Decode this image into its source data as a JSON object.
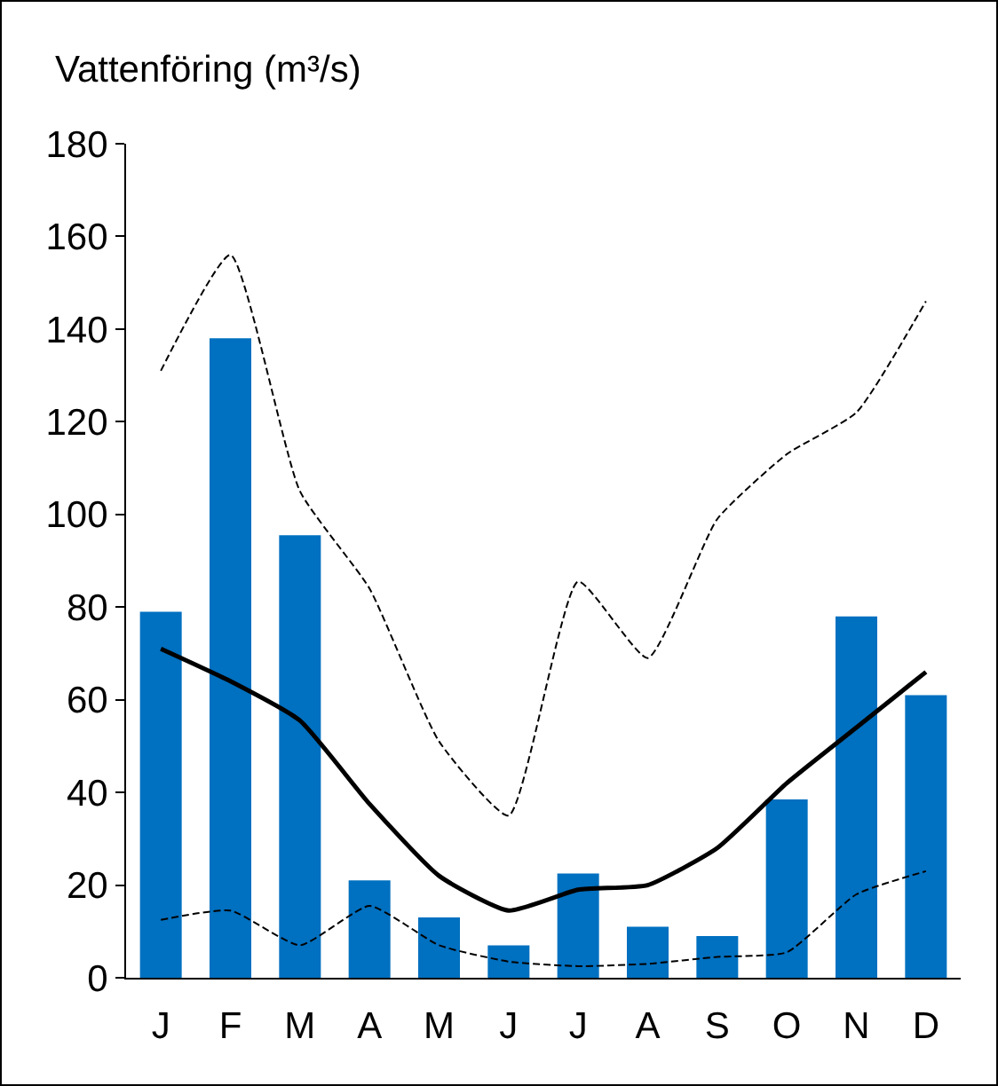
{
  "chart_data": {
    "type": "bar",
    "ylabel": "Vattenföring (m³/s)",
    "categories": [
      "J",
      "F",
      "M",
      "A",
      "M",
      "J",
      "J",
      "A",
      "S",
      "O",
      "N",
      "D"
    ],
    "ylim": [
      0,
      180
    ],
    "yticks": [
      0,
      20,
      40,
      60,
      80,
      100,
      120,
      140,
      160,
      180
    ],
    "grid": false,
    "marker": "none",
    "series": [
      {
        "color": "#0070c0",
        "values": [
          79,
          138,
          95.5,
          21,
          13,
          7,
          22.5,
          11,
          9,
          38.5,
          78,
          61
        ]
      },
      {
        "type": "line",
        "color": "#000000",
        "line_style": "solid",
        "values": [
          71,
          64,
          55.5,
          37.5,
          22,
          14.5,
          19,
          20,
          28,
          42,
          54,
          66
        ]
      },
      {
        "type": "line",
        "color": "#000000",
        "line_style": "dashed",
        "values": [
          131,
          156,
          105,
          84,
          51,
          35,
          85.5,
          69,
          99,
          113,
          122,
          146
        ]
      },
      {
        "type": "line",
        "color": "#000000",
        "line_style": "dashed",
        "values": [
          12.5,
          14.5,
          7,
          15.5,
          7,
          3.5,
          2.5,
          3,
          4.5,
          5.5,
          18,
          23
        ]
      }
    ]
  }
}
